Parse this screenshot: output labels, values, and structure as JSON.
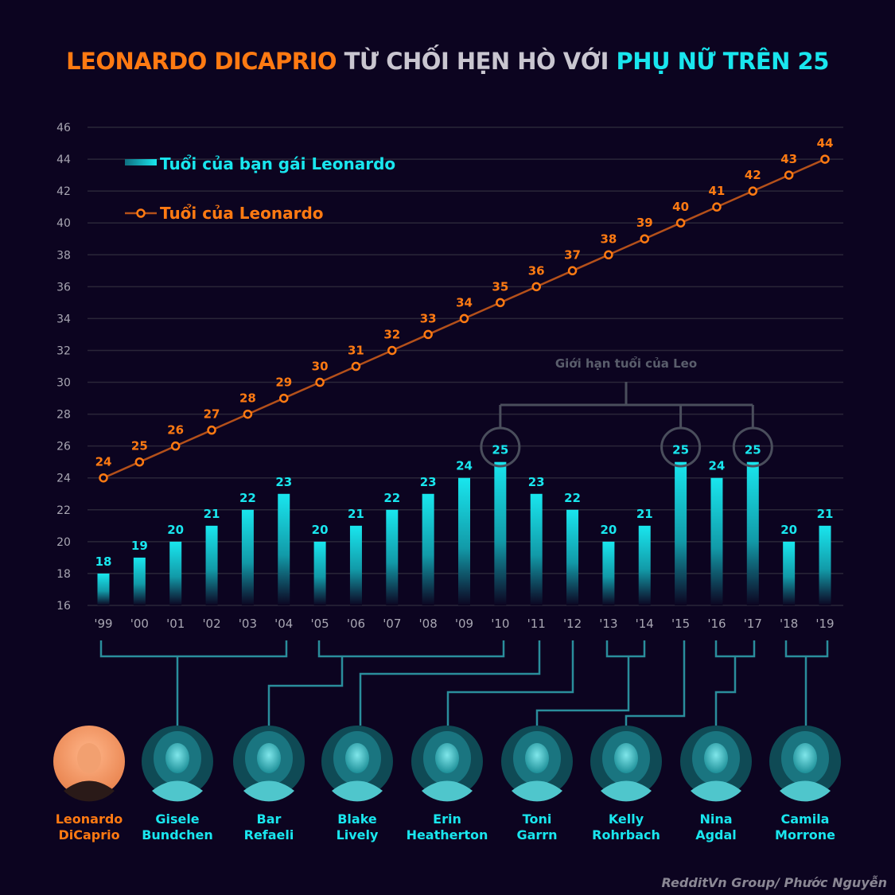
{
  "title": {
    "part1": "LEONARDO DICAPRIO",
    "part2": "TỪ CHỐI HẸN HÒ VỚI",
    "part3": "PHỤ NỮ TRÊN 25"
  },
  "colors": {
    "background": "#0c0420",
    "leo": "#ff7a12",
    "girlfriend": "#19e6ee",
    "annotation": "#4a4e5c",
    "connector": "#2a8e9c"
  },
  "chart_data": {
    "type": "bar+line",
    "categories": [
      "'99",
      "'00",
      "'01",
      "'02",
      "'03",
      "'04",
      "'05",
      "'06",
      "'07",
      "'08",
      "'09",
      "'10",
      "'11",
      "'12",
      "'13",
      "'14",
      "'15",
      "'16",
      "'17",
      "'18",
      "'19"
    ],
    "series": [
      {
        "name": "Tuổi của bạn gái Leonardo",
        "type": "bar",
        "values": [
          18,
          19,
          20,
          21,
          22,
          23,
          20,
          21,
          22,
          23,
          24,
          25,
          23,
          22,
          20,
          21,
          25,
          24,
          25,
          20,
          21
        ]
      },
      {
        "name": "Tuổi của Leonardo",
        "type": "line",
        "values": [
          24,
          25,
          26,
          27,
          28,
          29,
          30,
          31,
          32,
          33,
          34,
          35,
          36,
          37,
          38,
          39,
          40,
          41,
          42,
          43,
          44
        ]
      }
    ],
    "yticks": [
      16,
      18,
      20,
      22,
      24,
      26,
      28,
      30,
      32,
      34,
      36,
      38,
      40,
      42,
      44,
      46
    ],
    "ylim": [
      16,
      46
    ],
    "grid": true,
    "legend_position": "top-left",
    "annotation": {
      "text": "Giới hạn tuổi của Leo",
      "highlighted": [
        "'10",
        "'15",
        "'17"
      ]
    }
  },
  "people": [
    {
      "name1": "Leonardo",
      "name2": "DiCaprio",
      "is_leo": true
    },
    {
      "name1": "Gisele",
      "name2": "Bundchen",
      "years": "'99-'04"
    },
    {
      "name1": "Bar",
      "name2": "Refaeli",
      "years": "'05-'10"
    },
    {
      "name1": "Blake",
      "name2": "Lively",
      "years": "'11"
    },
    {
      "name1": "Erin",
      "name2": "Heatherton",
      "years": "'12"
    },
    {
      "name1": "Toni",
      "name2": "Garrn",
      "years": "'13-'14"
    },
    {
      "name1": "Kelly",
      "name2": "Rohrbach",
      "years": "'15"
    },
    {
      "name1": "Nina",
      "name2": "Agdal",
      "years": "'16-'17"
    },
    {
      "name1": "Camila",
      "name2": "Morrone",
      "years": "'18-'19"
    }
  ],
  "credit": "RedditVn Group/ Phước Nguyễn"
}
